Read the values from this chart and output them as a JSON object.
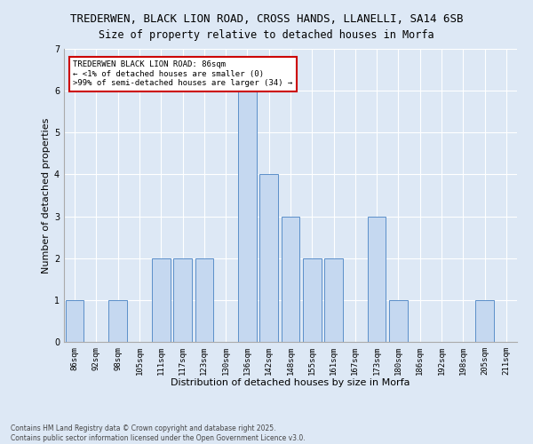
{
  "title1": "TREDERWEN, BLACK LION ROAD, CROSS HANDS, LLANELLI, SA14 6SB",
  "title2": "Size of property relative to detached houses in Morfa",
  "xlabel": "Distribution of detached houses by size in Morfa",
  "ylabel": "Number of detached properties",
  "categories": [
    "86sqm",
    "92sqm",
    "98sqm",
    "105sqm",
    "111sqm",
    "117sqm",
    "123sqm",
    "130sqm",
    "136sqm",
    "142sqm",
    "148sqm",
    "155sqm",
    "161sqm",
    "167sqm",
    "173sqm",
    "180sqm",
    "186sqm",
    "192sqm",
    "198sqm",
    "205sqm",
    "211sqm"
  ],
  "values": [
    1,
    0,
    1,
    0,
    2,
    2,
    2,
    0,
    6,
    4,
    3,
    2,
    2,
    0,
    3,
    1,
    0,
    0,
    0,
    1,
    0
  ],
  "bar_color": "#c5d8f0",
  "bar_edge_color": "#5b8fc9",
  "annotation_box_color": "#ffffff",
  "annotation_border_color": "#cc0000",
  "annotation_text_line1": "TREDERWEN BLACK LION ROAD: 86sqm",
  "annotation_text_line2": "← <1% of detached houses are smaller (0)",
  "annotation_text_line3": ">99% of semi-detached houses are larger (34) →",
  "ylim": [
    0,
    7
  ],
  "yticks": [
    0,
    1,
    2,
    3,
    4,
    5,
    6,
    7
  ],
  "footer_line1": "Contains HM Land Registry data © Crown copyright and database right 2025.",
  "footer_line2": "Contains public sector information licensed under the Open Government Licence v3.0.",
  "bg_color": "#dde8f5",
  "plot_bg_color": "#dde8f5",
  "title_fontsize": 9,
  "axis_label_fontsize": 8,
  "tick_fontsize": 6.5,
  "annotation_fontsize": 6.5,
  "footer_fontsize": 5.5
}
